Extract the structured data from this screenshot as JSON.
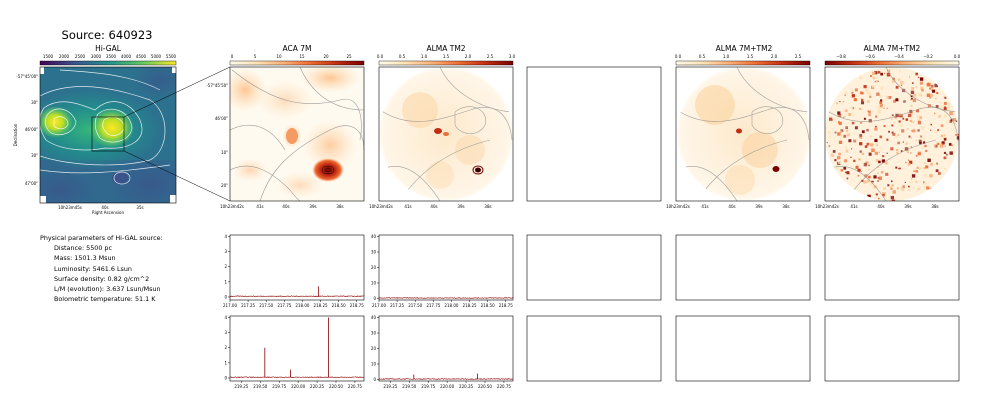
{
  "figure": {
    "title": "Source: 640923"
  },
  "panels": [
    {
      "title": "Hi-GAL",
      "xlabel": "Right Ascension",
      "ylabel": "Declination",
      "colorbar_ticks": [
        "1500",
        "2000",
        "2500",
        "3000",
        "3500",
        "4000",
        "4500",
        "5000",
        "5500"
      ],
      "y_ticks": [
        "-57°45'00\"",
        "30\"",
        "46'00\"",
        "30\"",
        "47'00\""
      ],
      "x_ticks": [
        "10h23m45s",
        "40s",
        "35s"
      ]
    },
    {
      "title": "ACA 7M",
      "colorbar_ticks": [
        "0",
        "5",
        "10",
        "15",
        "20",
        "25"
      ],
      "y_ticks": [
        "-57°45'50\"",
        "46'00\"",
        "10\"",
        "20\""
      ],
      "x_ticks": [
        "10h23m42s",
        "41s",
        "40s",
        "39s",
        "38s"
      ]
    },
    {
      "title": "ALMA TM2",
      "colorbar_ticks": [
        "0.0",
        "0.5",
        "1.0",
        "1.5",
        "2.0",
        "2.5",
        "3.0"
      ],
      "x_ticks": [
        "10h23m42s",
        "41s",
        "40s",
        "39s",
        "38s"
      ]
    },
    {
      "title": ""
    },
    {
      "title": "ALMA 7M+TM2",
      "colorbar_ticks": [
        "0.0",
        "0.5",
        "1.0",
        "1.5",
        "2.0",
        "2.5"
      ],
      "x_ticks": [
        "10h23m42s",
        "41s",
        "40s",
        "39s",
        "38s"
      ]
    },
    {
      "title": "ALMA 7M+TM2",
      "colorbar_ticks": [
        "−0.8",
        "−0.6",
        "−0.4",
        "−0.2",
        "0.0"
      ],
      "x_ticks": [
        "10h23m42s",
        "41s",
        "40s",
        "39s",
        "38s"
      ]
    }
  ],
  "params": {
    "heading": "Physical parameters of Hi-GAL source:",
    "distance": "Distance: 5500 pc",
    "mass": "Mass: 1501.3 Msun",
    "luminosity": "Luminosity: 5461.6 Lsun",
    "surface_density": "Surface density: 0.82 g/cm^2",
    "lm": "L/M (evolution): 3.637 Lsun/Msun",
    "tbol": "Bolometric temperature: 51.1 K"
  },
  "colors": {
    "spectrum_line": "#8b0000",
    "contour": "#9a9a9a",
    "hot_cmap": [
      "#fffbe9",
      "#fde3b6",
      "#fbb077",
      "#ef6b34",
      "#c22d12",
      "#7a0000"
    ]
  },
  "chart_data": [
    {
      "type": "line",
      "panel": "ACA 7M spectrum (row 1)",
      "xlim": [
        217.0,
        218.85
      ],
      "ylim": [
        -0.2,
        4.1
      ],
      "x_ticks": [
        "217.00",
        "217.25",
        "217.50",
        "217.75",
        "218.00",
        "218.25",
        "218.50",
        "218.75"
      ],
      "y_ticks": [
        "0",
        "1",
        "2",
        "3",
        "4"
      ],
      "baseline": 0.05,
      "peaks": [
        {
          "x": 218.22,
          "y": 0.7
        }
      ]
    },
    {
      "type": "line",
      "panel": "ALMA TM2 spectrum (row 1)",
      "xlim": [
        217.0,
        218.85
      ],
      "ylim": [
        -1,
        41
      ],
      "x_ticks": [
        "217.00",
        "217.25",
        "217.50",
        "217.75",
        "218.00",
        "218.25",
        "218.50",
        "218.75"
      ],
      "y_ticks": [
        "0",
        "10",
        "20",
        "30",
        "40"
      ],
      "baseline": 0.3,
      "peaks": []
    },
    {
      "type": "line",
      "panel": "ACA 7M spectrum (row 2)",
      "xlim": [
        219.1,
        220.87
      ],
      "ylim": [
        -0.2,
        4.1
      ],
      "x_ticks": [
        "219.25",
        "219.50",
        "219.75",
        "220.00",
        "220.25",
        "220.50",
        "220.75"
      ],
      "y_ticks": [
        "0",
        "1",
        "2",
        "3",
        "4"
      ],
      "baseline": 0.05,
      "peaks": [
        {
          "x": 219.56,
          "y": 2.0
        },
        {
          "x": 219.9,
          "y": 0.55
        },
        {
          "x": 220.4,
          "y": 4.0
        }
      ]
    },
    {
      "type": "line",
      "panel": "ALMA TM2 spectrum (row 2)",
      "xlim": [
        219.1,
        220.87
      ],
      "ylim": [
        -1,
        41
      ],
      "x_ticks": [
        "219.25",
        "219.50",
        "219.75",
        "220.00",
        "220.25",
        "220.50",
        "220.75"
      ],
      "y_ticks": [
        "0",
        "10",
        "20",
        "30",
        "40"
      ],
      "baseline": 0.3,
      "peaks": [
        {
          "x": 219.56,
          "y": 3.2
        },
        {
          "x": 220.4,
          "y": 3.8
        }
      ]
    }
  ]
}
